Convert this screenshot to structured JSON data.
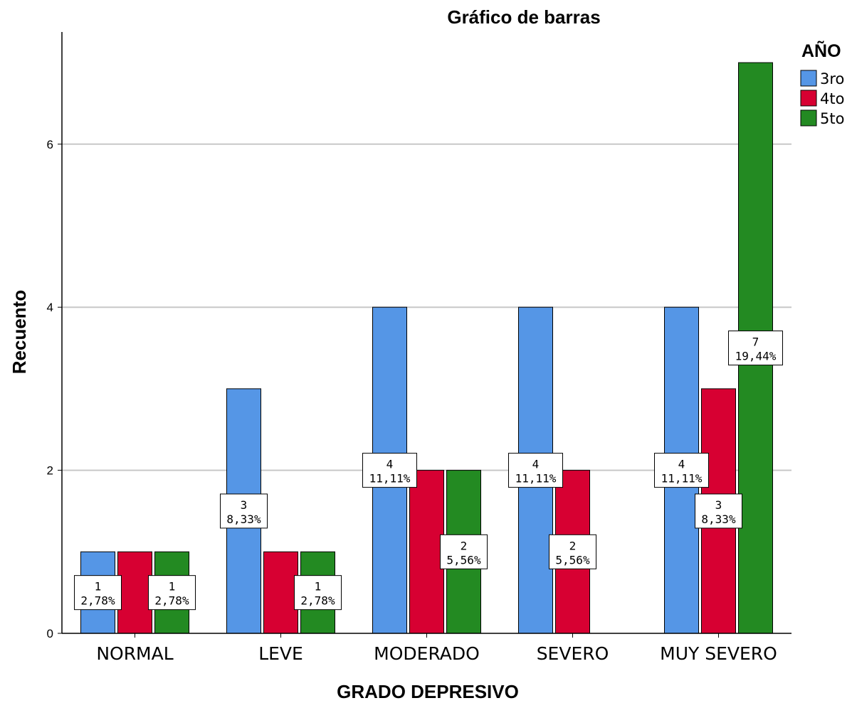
{
  "chart_data": {
    "type": "bar",
    "title": "Gráfico de barras",
    "xlabel": "GRADO DEPRESIVO",
    "ylabel": "Recuento",
    "ylim": [
      0,
      7.4
    ],
    "yticks": [
      0,
      2,
      4,
      6
    ],
    "grid": true,
    "legend": {
      "title": "AÑO",
      "position": "top-right"
    },
    "categories": [
      "NORMAL",
      "LEVE",
      "MODERADO",
      "SEVERO",
      "MUY SEVERO"
    ],
    "series": [
      {
        "name": "3ro",
        "color": "#5596e6",
        "values": [
          1,
          3,
          4,
          4,
          4
        ],
        "data_labels": [
          [
            "1",
            "2,78%"
          ],
          [
            "3",
            "8,33%"
          ],
          [
            "4",
            "11,11%"
          ],
          [
            "4",
            "11,11%"
          ],
          [
            "4",
            "11,11%"
          ]
        ]
      },
      {
        "name": "4to",
        "color": "#d70032",
        "values": [
          1,
          1,
          2,
          2,
          3
        ],
        "data_labels": [
          null,
          null,
          null,
          [
            "2",
            "5,56%"
          ],
          [
            "3",
            "8,33%"
          ]
        ]
      },
      {
        "name": "5to",
        "color": "#238a22",
        "values": [
          1,
          1,
          2,
          0,
          7
        ],
        "data_labels": [
          [
            "1",
            "2,78%"
          ],
          [
            "1",
            "2,78%"
          ],
          [
            "2",
            "5,56%"
          ],
          null,
          [
            "7",
            "19,44%"
          ]
        ]
      }
    ]
  }
}
